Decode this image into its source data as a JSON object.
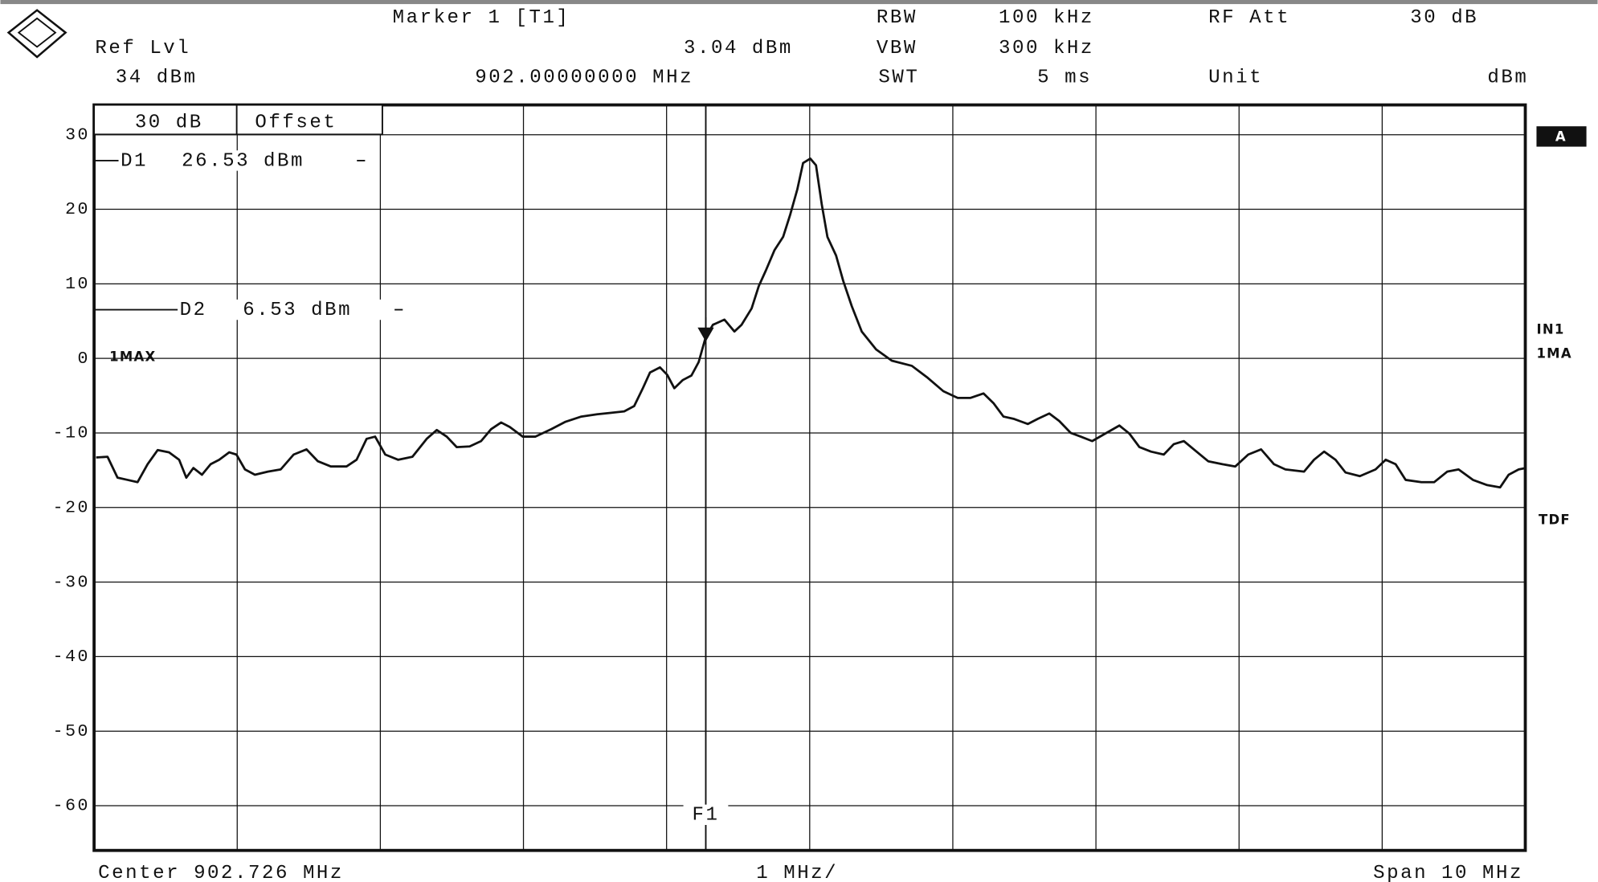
{
  "header": {
    "marker_title": "Marker 1 [T1]",
    "marker_level": "3.04 dBm",
    "marker_freq": "902.00000000 MHz",
    "ref_lvl_label": "Ref Lvl",
    "ref_lvl": "34 dBm",
    "rbw_label": "RBW",
    "rbw": "100 kHz",
    "vbw_label": "VBW",
    "vbw": "300 kHz",
    "swt_label": "SWT",
    "swt": "5 ms",
    "rf_att_label": "RF Att",
    "rf_att": "30 dB",
    "unit_label": "Unit",
    "unit": "dBm"
  },
  "footer": {
    "center": "Center 902.726 MHz",
    "div": "1 MHz/",
    "span": "Span 10 MHz"
  },
  "offset_box": [
    "30 dB",
    "Offset"
  ],
  "side_labels": {
    "trace_box": "A",
    "input": "IN1",
    "mode": "1MA",
    "tdf": "TDF"
  },
  "chart_data": {
    "type": "line",
    "xlim": [
      897.726,
      907.726
    ],
    "ylim": [
      -66,
      34
    ],
    "yticks": [
      30,
      20,
      10,
      0,
      -10,
      -20,
      -30,
      -40,
      -50,
      -60
    ],
    "grid": true,
    "x": [
      897.74,
      897.82,
      897.89,
      897.96,
      898.03,
      898.1,
      898.17,
      898.25,
      898.32,
      898.37,
      898.42,
      898.48,
      898.54,
      898.6,
      898.67,
      898.72,
      898.78,
      898.85,
      898.94,
      899.03,
      899.12,
      899.21,
      899.29,
      899.38,
      899.49,
      899.56,
      899.63,
      899.69,
      899.76,
      899.85,
      899.95,
      900.05,
      900.12,
      900.19,
      900.26,
      900.35,
      900.43,
      900.5,
      900.57,
      900.63,
      900.72,
      900.81,
      900.92,
      901.02,
      901.13,
      901.24,
      901.34,
      901.43,
      901.5,
      901.56,
      901.61,
      901.68,
      901.73,
      901.78,
      901.84,
      901.9,
      901.95,
      902.0,
      902.05,
      902.13,
      902.2,
      902.25,
      902.32,
      902.37,
      902.42,
      902.48,
      902.54,
      902.59,
      902.64,
      902.68,
      902.73,
      902.77,
      902.81,
      902.85,
      902.91,
      902.96,
      903.02,
      903.09,
      903.19,
      903.3,
      903.44,
      903.55,
      903.66,
      903.76,
      903.85,
      903.94,
      904.01,
      904.08,
      904.15,
      904.25,
      904.32,
      904.4,
      904.47,
      904.55,
      904.62,
      904.7,
      904.79,
      904.89,
      904.96,
      905.03,
      905.11,
      905.2,
      905.27,
      905.34,
      905.41,
      905.51,
      905.61,
      905.7,
      905.79,
      905.88,
      905.97,
      906.05,
      906.18,
      906.25,
      906.32,
      906.4,
      906.47,
      906.57,
      906.68,
      906.75,
      906.82,
      906.89,
      907.0,
      907.09,
      907.18,
      907.26,
      907.36,
      907.46,
      907.55,
      907.61,
      907.68,
      907.73
    ],
    "series": [
      {
        "name": "1MAX",
        "color": "#111111",
        "values": [
          -13.3,
          -13.2,
          -16.0,
          -16.3,
          -16.6,
          -14.2,
          -12.3,
          -12.6,
          -13.6,
          -16.0,
          -14.7,
          -15.6,
          -14.2,
          -13.6,
          -12.6,
          -12.9,
          -14.9,
          -15.6,
          -15.2,
          -14.9,
          -12.9,
          -12.2,
          -13.8,
          -14.5,
          -14.5,
          -13.6,
          -10.8,
          -10.5,
          -12.9,
          -13.6,
          -13.2,
          -10.8,
          -9.6,
          -10.5,
          -11.9,
          -11.8,
          -11.1,
          -9.5,
          -8.6,
          -9.2,
          -10.5,
          -10.5,
          -9.5,
          -8.5,
          -7.8,
          -7.5,
          -7.3,
          -7.1,
          -6.4,
          -4.0,
          -1.9,
          -1.2,
          -2.2,
          -4.0,
          -2.9,
          -2.3,
          -0.5,
          2.9,
          4.5,
          5.2,
          3.6,
          4.5,
          6.7,
          9.7,
          11.8,
          14.5,
          16.3,
          19.3,
          22.7,
          26.2,
          26.8,
          25.9,
          20.7,
          16.3,
          13.8,
          10.4,
          7.0,
          3.6,
          1.2,
          -0.3,
          -1.0,
          -2.6,
          -4.4,
          -5.3,
          -5.3,
          -4.7,
          -6.0,
          -7.8,
          -8.1,
          -8.8,
          -8.1,
          -7.4,
          -8.4,
          -10.0,
          -10.5,
          -11.1,
          -10.1,
          -9.0,
          -10.1,
          -11.9,
          -12.5,
          -12.9,
          -11.5,
          -11.1,
          -12.2,
          -13.8,
          -14.2,
          -14.5,
          -12.9,
          -12.2,
          -14.2,
          -14.9,
          -15.2,
          -13.6,
          -12.5,
          -13.6,
          -15.3,
          -15.8,
          -14.9,
          -13.6,
          -14.2,
          -16.3,
          -16.6,
          -16.6,
          -15.2,
          -14.9,
          -16.3,
          -17.0,
          -17.3,
          -15.6,
          -14.9,
          -14.7
        ]
      }
    ],
    "display_lines": [
      {
        "name": "D1",
        "value": 26.53,
        "label": "26.53 dBm"
      },
      {
        "name": "D2",
        "value": 6.53,
        "label": "6.53 dBm"
      }
    ],
    "frequency_lines": [
      {
        "name": "F1",
        "x": 902.0
      }
    ],
    "marker": {
      "x": 902.0,
      "value": 3.04
    }
  }
}
